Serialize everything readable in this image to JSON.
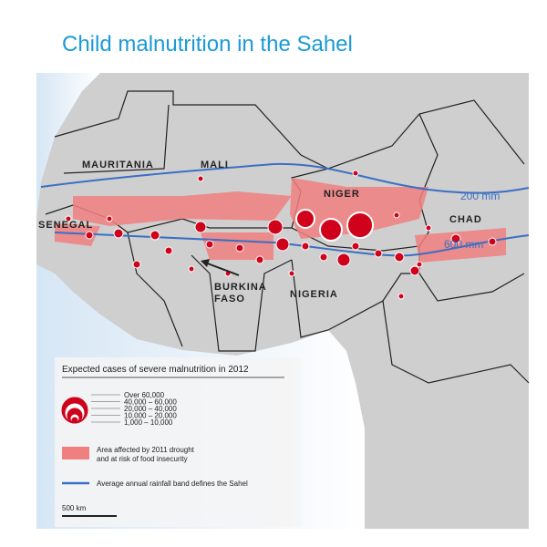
{
  "title": "Child malnutrition in the Sahel",
  "countries": [
    {
      "label": [
        "MAURITANIA"
      ]
    },
    {
      "label": [
        "MALI"
      ]
    },
    {
      "label": [
        "NIGER"
      ]
    },
    {
      "label": [
        "CHAD"
      ]
    },
    {
      "label": [
        "SENEGAL"
      ]
    },
    {
      "label": [
        "BURKINA",
        "FASO"
      ]
    },
    {
      "label": [
        "NIGERIA"
      ]
    }
  ],
  "rainfall_labels": [
    "200 mm",
    "600 mm"
  ],
  "legend": {
    "title": "Expected cases of severe malnutrition in 2012",
    "size_classes": [
      "Over 60,000",
      "40,000 – 60,000",
      "20,000 – 40,000",
      "10,000 – 20,000",
      "1,000 – 10,000"
    ],
    "drought_area": [
      "Area affected by 2011 drought",
      "and at risk of food insecurity"
    ],
    "rainfall_band": "Average annual rainfall band defines the Sahel",
    "scale": "500 km"
  }
}
